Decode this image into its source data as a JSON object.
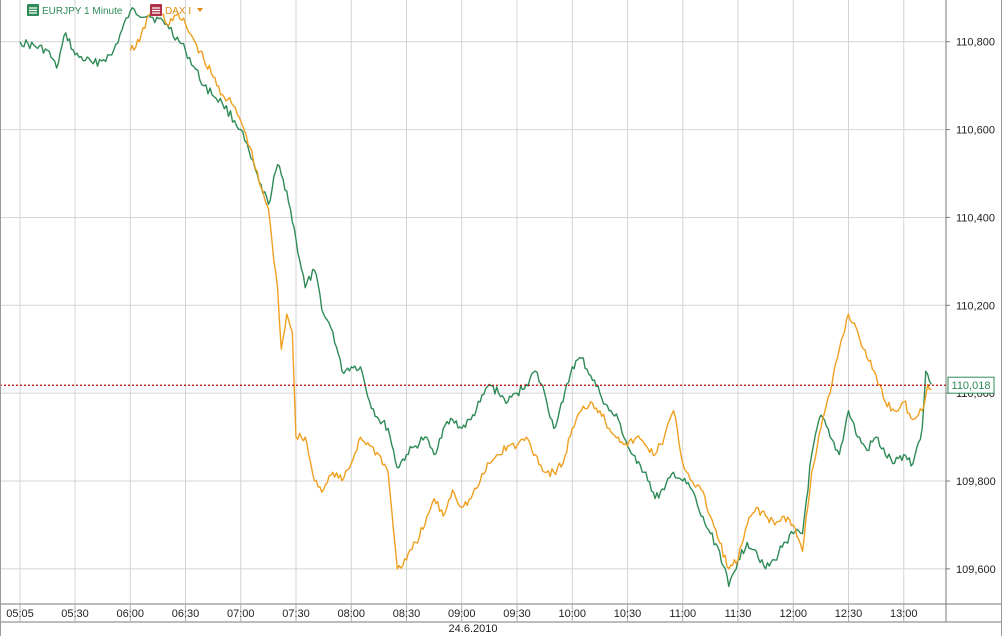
{
  "legend": {
    "series1_label": "EURJPY 1 Minute",
    "series2_label": "DAX I"
  },
  "current_price_label": "110,018",
  "date_label": "24.6.2010",
  "colors": {
    "eurjpy": "#2e8b57",
    "dax": "#f0a020",
    "grid": "#d4d4d4",
    "price_line": "#c00000",
    "price_box_bg": "#ffffff",
    "price_box_border": "#2e8b57"
  },
  "chart_data": {
    "type": "line",
    "title": "",
    "xlabel": "",
    "ylabel": "",
    "x_ticks": [
      "05:05",
      "05:30",
      "06:00",
      "06:30",
      "07:00",
      "07:30",
      "08:00",
      "08:30",
      "09:00",
      "09:30",
      "10:00",
      "10:30",
      "11:00",
      "11:30",
      "12:00",
      "12:30",
      "13:00"
    ],
    "y_ticks": [
      "109,600",
      "109,800",
      "110,000",
      "110,200",
      "110,400",
      "110,600",
      "110,800"
    ],
    "y_tick_values": [
      109.6,
      109.8,
      110.0,
      110.2,
      110.4,
      110.6,
      110.8
    ],
    "ylim": [
      109.52,
      110.895
    ],
    "grid": true,
    "legend_position": "top-left",
    "series": [
      {
        "name": "EURJPY 1 Minute",
        "points": [
          [
            "05:05",
            110.8
          ],
          [
            "05:15",
            110.78
          ],
          [
            "05:20",
            110.74
          ],
          [
            "05:25",
            110.82
          ],
          [
            "05:30",
            110.77
          ],
          [
            "05:40",
            110.75
          ],
          [
            "05:50",
            110.77
          ],
          [
            "06:00",
            110.87
          ],
          [
            "06:10",
            110.86
          ],
          [
            "06:20",
            110.84
          ],
          [
            "06:30",
            110.78
          ],
          [
            "06:40",
            110.7
          ],
          [
            "06:50",
            110.66
          ],
          [
            "07:00",
            110.6
          ],
          [
            "07:10",
            110.48
          ],
          [
            "07:15",
            110.43
          ],
          [
            "07:20",
            110.52
          ],
          [
            "07:25",
            110.46
          ],
          [
            "07:30",
            110.35
          ],
          [
            "07:35",
            110.24
          ],
          [
            "07:40",
            110.28
          ],
          [
            "07:45",
            110.18
          ],
          [
            "07:50",
            110.14
          ],
          [
            "07:55",
            110.05
          ],
          [
            "08:00",
            110.06
          ],
          [
            "08:05",
            110.06
          ],
          [
            "08:10",
            109.98
          ],
          [
            "08:15",
            109.94
          ],
          [
            "08:20",
            109.92
          ],
          [
            "08:25",
            109.83
          ],
          [
            "08:30",
            109.86
          ],
          [
            "08:35",
            109.88
          ],
          [
            "08:40",
            109.9
          ],
          [
            "08:45",
            109.86
          ],
          [
            "08:50",
            109.92
          ],
          [
            "08:55",
            109.94
          ],
          [
            "09:00",
            109.92
          ],
          [
            "09:05",
            109.94
          ],
          [
            "09:10",
            109.98
          ],
          [
            "09:15",
            110.02
          ],
          [
            "09:20",
            110.0
          ],
          [
            "09:25",
            109.98
          ],
          [
            "09:30",
            110.0
          ],
          [
            "09:35",
            110.02
          ],
          [
            "09:40",
            110.05
          ],
          [
            "09:45",
            110.0
          ],
          [
            "09:50",
            109.92
          ],
          [
            "09:55",
            109.98
          ],
          [
            "10:00",
            110.06
          ],
          [
            "10:05",
            110.08
          ],
          [
            "10:10",
            110.04
          ],
          [
            "10:15",
            110.0
          ],
          [
            "10:20",
            109.96
          ],
          [
            "10:25",
            109.94
          ],
          [
            "10:30",
            109.88
          ],
          [
            "10:35",
            109.84
          ],
          [
            "10:40",
            109.82
          ],
          [
            "10:45",
            109.76
          ],
          [
            "10:50",
            109.78
          ],
          [
            "10:55",
            109.82
          ],
          [
            "11:00",
            109.8
          ],
          [
            "11:05",
            109.78
          ],
          [
            "11:10",
            109.72
          ],
          [
            "11:15",
            109.68
          ],
          [
            "11:20",
            109.64
          ],
          [
            "11:25",
            109.56
          ],
          [
            "11:30",
            109.62
          ],
          [
            "11:35",
            109.66
          ],
          [
            "11:40",
            109.64
          ],
          [
            "11:45",
            109.6
          ],
          [
            "11:50",
            109.62
          ],
          [
            "11:55",
            109.66
          ],
          [
            "12:00",
            109.68
          ],
          [
            "12:05",
            109.68
          ],
          [
            "12:10",
            109.86
          ],
          [
            "12:15",
            109.95
          ],
          [
            "12:20",
            109.9
          ],
          [
            "12:25",
            109.86
          ],
          [
            "12:30",
            109.96
          ],
          [
            "12:35",
            109.9
          ],
          [
            "12:40",
            109.87
          ],
          [
            "12:45",
            109.9
          ],
          [
            "12:50",
            109.86
          ],
          [
            "12:55",
            109.84
          ],
          [
            "13:00",
            109.86
          ],
          [
            "13:05",
            109.84
          ],
          [
            "13:10",
            109.92
          ],
          [
            "13:12",
            110.05
          ],
          [
            "13:15",
            110.02
          ]
        ]
      },
      {
        "name": "DAX I",
        "points": [
          [
            "06:00",
            110.78
          ],
          [
            "06:05",
            110.8
          ],
          [
            "06:10",
            110.86
          ],
          [
            "06:15",
            110.88
          ],
          [
            "06:20",
            110.84
          ],
          [
            "06:25",
            110.86
          ],
          [
            "06:30",
            110.84
          ],
          [
            "06:35",
            110.8
          ],
          [
            "06:40",
            110.76
          ],
          [
            "06:45",
            110.72
          ],
          [
            "06:50",
            110.68
          ],
          [
            "06:55",
            110.66
          ],
          [
            "07:00",
            110.62
          ],
          [
            "07:05",
            110.56
          ],
          [
            "07:10",
            110.48
          ],
          [
            "07:15",
            110.42
          ],
          [
            "07:18",
            110.3
          ],
          [
            "07:20",
            110.24
          ],
          [
            "07:22",
            110.1
          ],
          [
            "07:25",
            110.18
          ],
          [
            "07:28",
            110.14
          ],
          [
            "07:30",
            109.9
          ],
          [
            "07:35",
            109.9
          ],
          [
            "07:40",
            109.8
          ],
          [
            "07:45",
            109.78
          ],
          [
            "07:50",
            109.82
          ],
          [
            "07:55",
            109.8
          ],
          [
            "08:00",
            109.84
          ],
          [
            "08:05",
            109.9
          ],
          [
            "08:10",
            109.88
          ],
          [
            "08:15",
            109.86
          ],
          [
            "08:20",
            109.82
          ],
          [
            "08:25",
            109.6
          ],
          [
            "08:30",
            109.62
          ],
          [
            "08:35",
            109.66
          ],
          [
            "08:40",
            109.7
          ],
          [
            "08:45",
            109.76
          ],
          [
            "08:50",
            109.72
          ],
          [
            "08:55",
            109.78
          ],
          [
            "09:00",
            109.74
          ],
          [
            "09:05",
            109.76
          ],
          [
            "09:10",
            109.8
          ],
          [
            "09:15",
            109.84
          ],
          [
            "09:20",
            109.86
          ],
          [
            "09:25",
            109.88
          ],
          [
            "09:30",
            109.88
          ],
          [
            "09:35",
            109.9
          ],
          [
            "09:40",
            109.86
          ],
          [
            "09:45",
            109.82
          ],
          [
            "09:50",
            109.82
          ],
          [
            "09:55",
            109.84
          ],
          [
            "10:00",
            109.92
          ],
          [
            "10:05",
            109.96
          ],
          [
            "10:10",
            109.98
          ],
          [
            "10:15",
            109.96
          ],
          [
            "10:20",
            109.92
          ],
          [
            "10:25",
            109.9
          ],
          [
            "10:30",
            109.88
          ],
          [
            "10:35",
            109.9
          ],
          [
            "10:40",
            109.88
          ],
          [
            "10:45",
            109.86
          ],
          [
            "10:50",
            109.9
          ],
          [
            "10:55",
            109.96
          ],
          [
            "11:00",
            109.84
          ],
          [
            "11:05",
            109.8
          ],
          [
            "11:10",
            109.78
          ],
          [
            "11:15",
            109.72
          ],
          [
            "11:20",
            109.66
          ],
          [
            "11:25",
            109.6
          ],
          [
            "11:30",
            109.62
          ],
          [
            "11:35",
            109.7
          ],
          [
            "11:40",
            109.74
          ],
          [
            "11:45",
            109.72
          ],
          [
            "11:50",
            109.7
          ],
          [
            "11:55",
            109.72
          ],
          [
            "12:00",
            109.7
          ],
          [
            "12:05",
            109.64
          ],
          [
            "12:10",
            109.82
          ],
          [
            "12:15",
            109.92
          ],
          [
            "12:20",
            110.0
          ],
          [
            "12:25",
            110.1
          ],
          [
            "12:30",
            110.18
          ],
          [
            "12:35",
            110.14
          ],
          [
            "12:40",
            110.08
          ],
          [
            "12:45",
            110.04
          ],
          [
            "12:50",
            109.98
          ],
          [
            "12:55",
            109.96
          ],
          [
            "13:00",
            109.98
          ],
          [
            "13:05",
            109.94
          ],
          [
            "13:10",
            109.96
          ],
          [
            "13:13",
            110.02
          ],
          [
            "13:15",
            110.01
          ]
        ]
      }
    ],
    "reference_line": {
      "label": "110,018",
      "value": 110.018
    }
  }
}
